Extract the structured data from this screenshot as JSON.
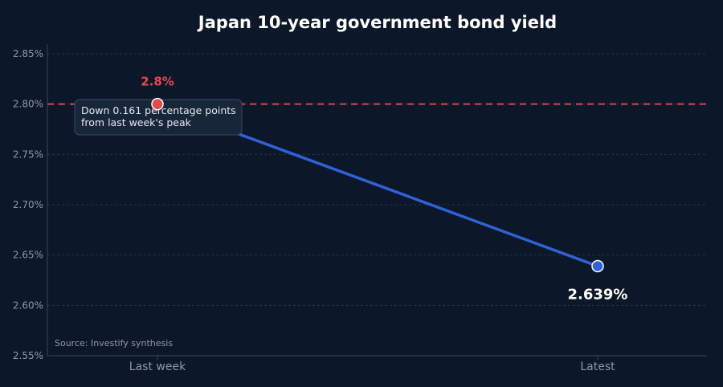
{
  "chart_data": {
    "type": "line",
    "title": "Japan 10-year government bond yield",
    "categories": [
      "Last week",
      "Latest"
    ],
    "series": [
      {
        "values": [
          2.8,
          2.639
        ]
      }
    ],
    "ylim": [
      2.55,
      2.85
    ],
    "yticks": [
      "2.55%",
      "2.60%",
      "2.65%",
      "2.70%",
      "2.75%",
      "2.80%",
      "2.85%"
    ],
    "ytick_values": [
      2.55,
      2.6,
      2.65,
      2.7,
      2.75,
      2.8,
      2.85
    ],
    "grid": true,
    "reference_line": {
      "value": 2.8,
      "style": "dashed",
      "color": "#d64550"
    },
    "point_labels": [
      "2.8%",
      "2.639%"
    ],
    "annotation": {
      "lines": [
        "Down 0.161 percentage points",
        "from last week's peak"
      ],
      "anchor_category": "Last week"
    },
    "source": "Source: Investify synthesis",
    "colors": {
      "line": "#2f62d8",
      "peak_point": "#e5484d",
      "latest_point": "#2f62d8",
      "peak_label": "#e5484d",
      "background": "#0c1829"
    }
  }
}
